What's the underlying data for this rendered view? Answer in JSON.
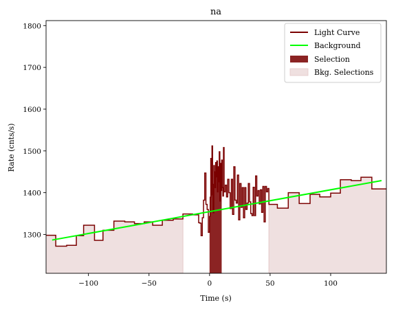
{
  "chart_data": {
    "type": "line",
    "title": "na",
    "xlabel": "Time (s)",
    "ylabel": "Rate (cnts/s)",
    "xlim": [
      -135,
      146
    ],
    "ylim": [
      1207,
      1812
    ],
    "xticks": [
      -100,
      -50,
      0,
      50,
      100
    ],
    "yticks": [
      1300,
      1400,
      1500,
      1600,
      1700,
      1800
    ],
    "grid": false,
    "legend_position": "top-right",
    "legend": [
      "Light Curve",
      "Background",
      "Selection",
      "Bkg. Selections"
    ],
    "colors": {
      "light_curve": "#7a0000",
      "background": "#00ff00",
      "selection": "#8b2323",
      "bkg_selection": "#efe0e0",
      "bkg_selection_edge": "#e3c8c8"
    },
    "background_line": {
      "x": [
        -135,
        146
      ],
      "y": [
        1284,
        1431
      ]
    },
    "selection": [
      0,
      10
    ],
    "bkg_selections": [
      [
        -135,
        -22
      ],
      [
        49,
        146
      ]
    ],
    "series": [
      {
        "name": "Light Curve",
        "steps": [
          [
            -135,
            1298
          ],
          [
            -127,
            1272
          ],
          [
            -118,
            1274
          ],
          [
            -110,
            1297
          ],
          [
            -104,
            1322
          ],
          [
            -95,
            1286
          ],
          [
            -88,
            1310
          ],
          [
            -79,
            1332
          ],
          [
            -70,
            1330
          ],
          [
            -62,
            1326
          ],
          [
            -54,
            1330
          ],
          [
            -47,
            1322
          ],
          [
            -39,
            1334
          ],
          [
            -30,
            1337
          ],
          [
            -22,
            1349
          ],
          [
            -14,
            1347
          ],
          [
            -9,
            1328
          ],
          [
            -8,
            1327
          ],
          [
            -7,
            1297
          ],
          [
            -6,
            1340
          ],
          [
            -5,
            1382
          ],
          [
            -4,
            1447
          ],
          [
            -3,
            1372
          ],
          [
            -2,
            1360
          ],
          [
            -1,
            1305
          ],
          [
            0,
            1343
          ],
          [
            0.5,
            1389
          ],
          [
            1,
            1482
          ],
          [
            1.5,
            1395
          ],
          [
            2,
            1512
          ],
          [
            2.5,
            1420
          ],
          [
            3,
            1352
          ],
          [
            3.5,
            1465
          ],
          [
            4,
            1450
          ],
          [
            4.5,
            1412
          ],
          [
            5,
            1472
          ],
          [
            5.5,
            1438
          ],
          [
            6,
            1476
          ],
          [
            6.5,
            1402
          ],
          [
            7,
            1462
          ],
          [
            7.5,
            1426
          ],
          [
            8,
            1498
          ],
          [
            8.5,
            1380
          ],
          [
            9,
            1470
          ],
          [
            9.5,
            1405
          ],
          [
            10,
            1478
          ],
          [
            10.5,
            1412
          ],
          [
            11,
            1392
          ],
          [
            11.5,
            1508
          ],
          [
            12,
            1402
          ],
          [
            13,
            1418
          ],
          [
            14,
            1390
          ],
          [
            15,
            1432
          ],
          [
            16,
            1400
          ],
          [
            17,
            1362
          ],
          [
            18,
            1432
          ],
          [
            19,
            1348
          ],
          [
            20,
            1462
          ],
          [
            21,
            1382
          ],
          [
            22,
            1375
          ],
          [
            23,
            1442
          ],
          [
            24,
            1335
          ],
          [
            25,
            1422
          ],
          [
            26,
            1365
          ],
          [
            27,
            1412
          ],
          [
            28,
            1340
          ],
          [
            29,
            1412
          ],
          [
            30,
            1360
          ],
          [
            31,
            1375
          ],
          [
            32,
            1422
          ],
          [
            33,
            1378
          ],
          [
            34,
            1350
          ],
          [
            35,
            1345
          ],
          [
            36,
            1413
          ],
          [
            37,
            1345
          ],
          [
            38,
            1440
          ],
          [
            39,
            1392
          ],
          [
            40,
            1405
          ],
          [
            41,
            1373
          ],
          [
            42,
            1407
          ],
          [
            43,
            1353
          ],
          [
            44,
            1415
          ],
          [
            45,
            1330
          ],
          [
            46,
            1415
          ],
          [
            47,
            1402
          ],
          [
            48,
            1410
          ],
          [
            49,
            1372
          ],
          [
            56,
            1363
          ],
          [
            65,
            1400
          ],
          [
            74,
            1374
          ],
          [
            83,
            1396
          ],
          [
            91,
            1390
          ],
          [
            100,
            1399
          ],
          [
            108,
            1431
          ],
          [
            117,
            1429
          ],
          [
            125,
            1437
          ],
          [
            134,
            1409
          ],
          [
            146,
            1409
          ]
        ]
      }
    ]
  }
}
